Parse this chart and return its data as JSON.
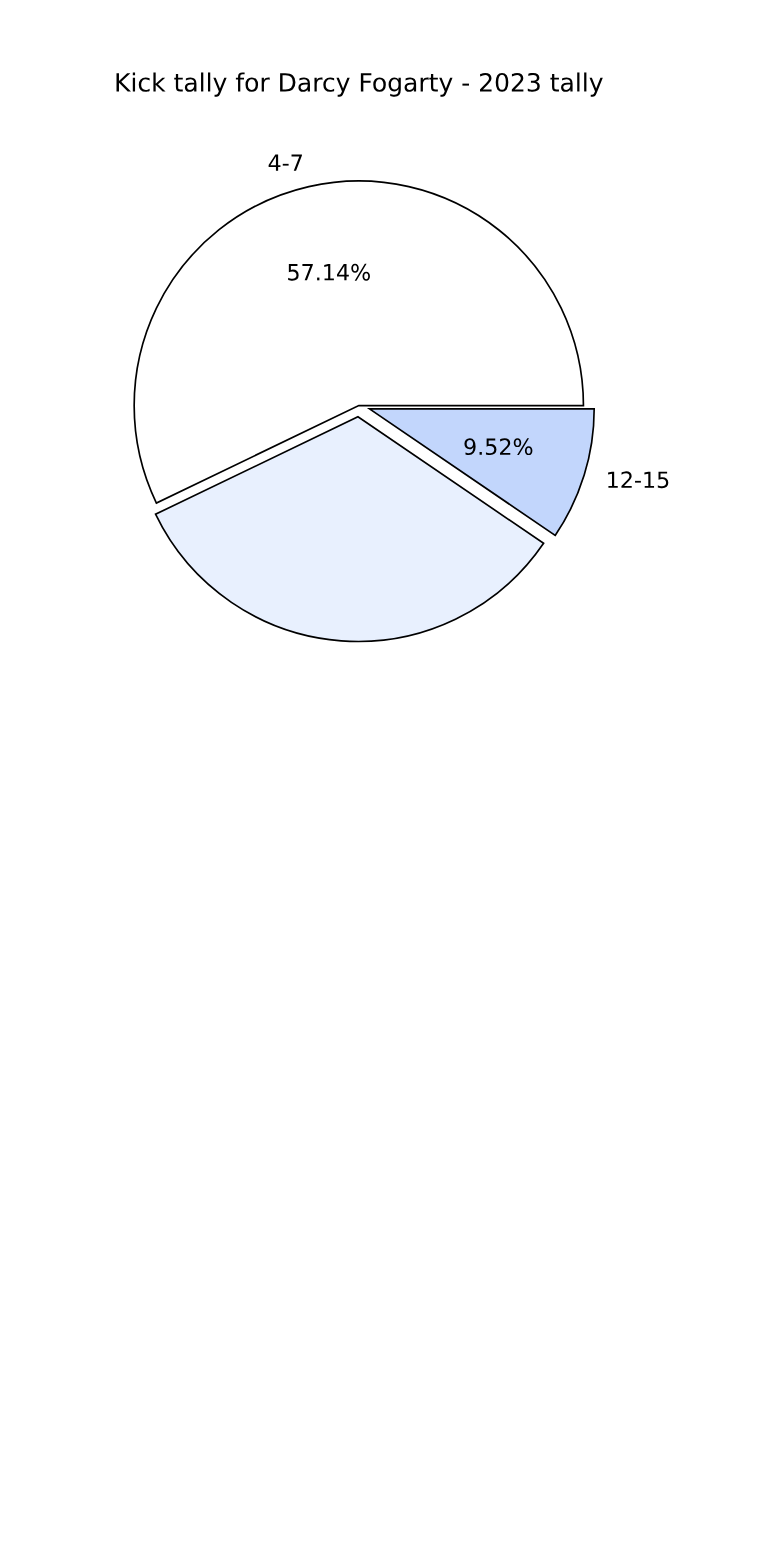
{
  "chart_data": {
    "type": "pie",
    "title": "Kick tally for Darcy Fogarty - 2023 tally",
    "categories": [
      "4-7",
      null,
      "12-15"
    ],
    "values": [
      57.14,
      33.34,
      9.52
    ],
    "colors": [
      "#ffffff",
      "#e8f0fe",
      "#c2d6fc"
    ],
    "value_labels": [
      "57.14%",
      null,
      "9.52%"
    ]
  }
}
